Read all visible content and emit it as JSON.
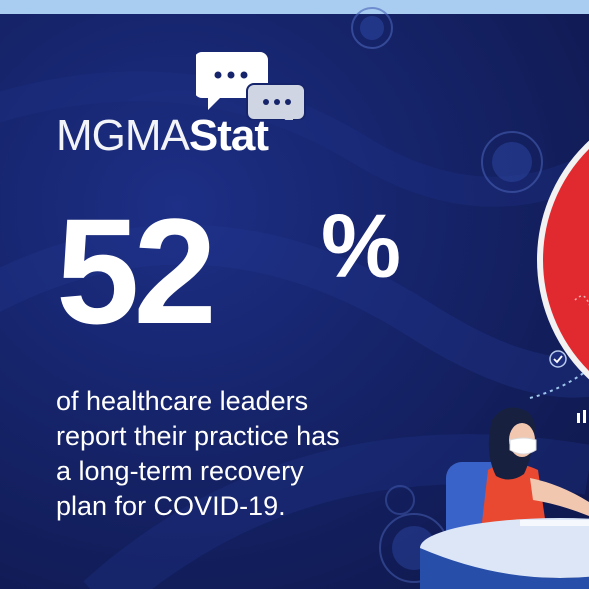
{
  "brand": {
    "logo_thin": "MGMA",
    "logo_bold": "Stat",
    "chat_icon": "speech-bubbles-icon"
  },
  "stat": {
    "value": "52",
    "unit": "%"
  },
  "description": {
    "line1": "of healthcare leaders",
    "line2": "report their practice has",
    "line3": "a long-term recovery",
    "line4": "plan for COVID-19."
  },
  "colors": {
    "background": "#16246b",
    "top_bar": "#a9cdf0",
    "accent_red": "#e12a2f",
    "text": "#ffffff"
  }
}
